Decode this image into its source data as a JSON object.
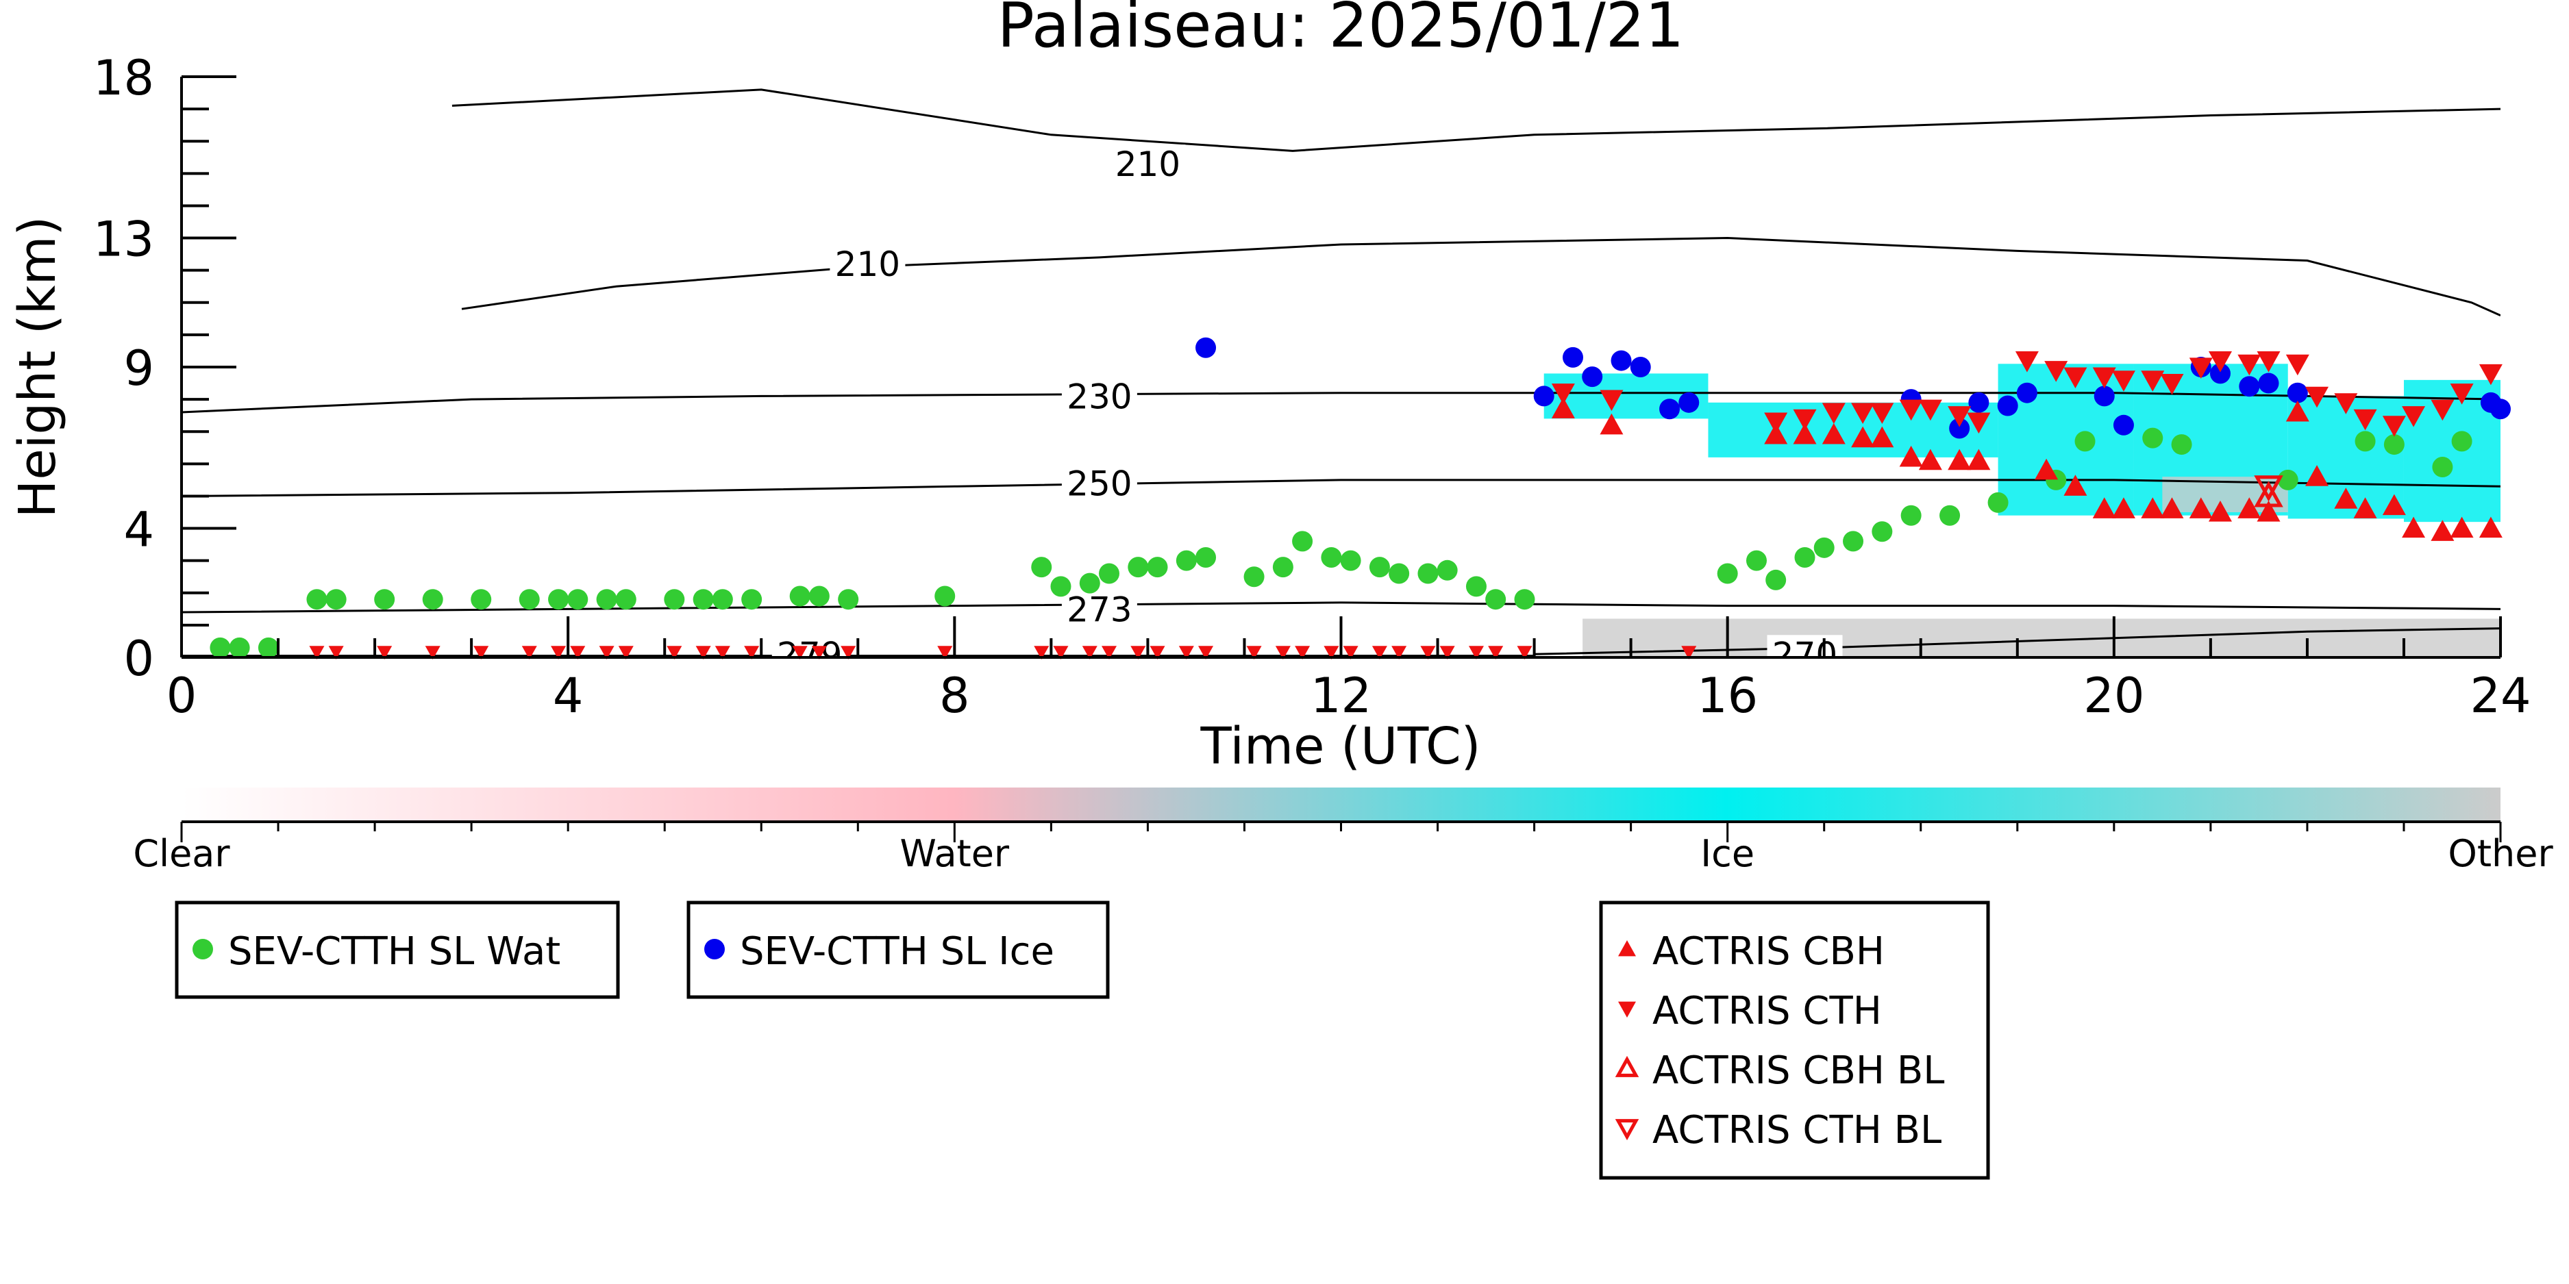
{
  "colors": {
    "water_marker": "#33cc33",
    "ice_marker": "#0000ee",
    "actris_marker": "#ee1111",
    "ice_cloud": "#00f0f0",
    "other_cloud": "#cccccc",
    "water_cloud": "#ffb6c1",
    "contour": "#000000"
  },
  "chart_data": {
    "type": "scatter",
    "title": "Palaiseau: 2025/01/21",
    "xlabel": "Time (UTC)",
    "ylabel": "Height (km)",
    "xlim": [
      0,
      24
    ],
    "ylim": [
      0,
      18
    ],
    "xticks": [
      0,
      4,
      8,
      12,
      16,
      20,
      24
    ],
    "yticks": [
      0,
      4,
      9,
      13,
      18
    ],
    "colorbar": {
      "labels": [
        "Clear",
        "Water",
        "Ice",
        "Other"
      ],
      "positions": [
        0,
        8,
        16,
        24
      ]
    },
    "contours": [
      {
        "label": "210",
        "label_x": 10.0,
        "label_y": 15.3,
        "points": [
          [
            2.8,
            17.1
          ],
          [
            6,
            17.6
          ],
          [
            9,
            16.2
          ],
          [
            11.5,
            15.7
          ],
          [
            14,
            16.2
          ],
          [
            17,
            16.4
          ],
          [
            21,
            16.8
          ],
          [
            24,
            17.0
          ]
        ]
      },
      {
        "label": "210",
        "label_x": 7.1,
        "label_y": 12.2,
        "points": [
          [
            2.9,
            10.8
          ],
          [
            4.5,
            11.5
          ],
          [
            7,
            12.1
          ],
          [
            9.5,
            12.4
          ],
          [
            12,
            12.8
          ],
          [
            16,
            13.0
          ],
          [
            19,
            12.6
          ],
          [
            22,
            12.3
          ],
          [
            23.7,
            11.0
          ],
          [
            24,
            10.6
          ]
        ]
      },
      {
        "label": "230",
        "label_x": 9.5,
        "label_y": 8.1,
        "points": [
          [
            0,
            7.6
          ],
          [
            3,
            8.0
          ],
          [
            6,
            8.1
          ],
          [
            12,
            8.2
          ],
          [
            16,
            8.2
          ],
          [
            20,
            8.2
          ],
          [
            24,
            8.0
          ]
        ]
      },
      {
        "label": "250",
        "label_x": 9.5,
        "label_y": 5.4,
        "points": [
          [
            0,
            5.0
          ],
          [
            4,
            5.1
          ],
          [
            8,
            5.3
          ],
          [
            12,
            5.5
          ],
          [
            16,
            5.5
          ],
          [
            20,
            5.5
          ],
          [
            24,
            5.3
          ]
        ]
      },
      {
        "label": "273",
        "label_x": 9.5,
        "label_y": 1.5,
        "points": [
          [
            0,
            1.4
          ],
          [
            4,
            1.5
          ],
          [
            8,
            1.6
          ],
          [
            12,
            1.7
          ],
          [
            16,
            1.6
          ],
          [
            20,
            1.6
          ],
          [
            24,
            1.5
          ]
        ]
      },
      {
        "label": "270",
        "label_x": 16.8,
        "label_y": 0.1,
        "points": [
          [
            14,
            0.1
          ],
          [
            17,
            0.3
          ],
          [
            20,
            0.6
          ],
          [
            22,
            0.8
          ],
          [
            24,
            0.9
          ]
        ]
      },
      {
        "label": "279",
        "label_x": 6.5,
        "label_y": 0.1,
        "points": [
          [
            0,
            0.05
          ],
          [
            14,
            0.05
          ]
        ]
      }
    ],
    "cloud_regions": [
      {
        "type": "ice",
        "x0": 14.1,
        "x1": 15.8,
        "y0": 7.4,
        "y1": 8.8
      },
      {
        "type": "ice",
        "x0": 15.8,
        "x1": 18.8,
        "y0": 6.2,
        "y1": 7.9
      },
      {
        "type": "ice",
        "x0": 18.8,
        "x1": 20.2,
        "y0": 4.4,
        "y1": 9.1
      },
      {
        "type": "ice",
        "x0": 20.2,
        "x1": 21.8,
        "y0": 4.4,
        "y1": 9.1
      },
      {
        "type": "ice",
        "x0": 21.8,
        "x1": 23.0,
        "y0": 4.3,
        "y1": 8.1
      },
      {
        "type": "ice",
        "x0": 23.0,
        "x1": 24.0,
        "y0": 4.2,
        "y1": 8.6
      },
      {
        "type": "other",
        "x0": 14.5,
        "x1": 24.0,
        "y0": 0.0,
        "y1": 1.2
      },
      {
        "type": "other",
        "x0": 20.5,
        "x1": 21.8,
        "y0": 4.5,
        "y1": 5.6
      }
    ],
    "series": [
      {
        "name": "SEV-CTTH SL Wat",
        "marker": "circle",
        "x": [
          0.4,
          0.6,
          0.9,
          1.4,
          1.6,
          2.1,
          2.6,
          3.1,
          3.6,
          3.9,
          4.1,
          4.4,
          4.6,
          5.1,
          5.4,
          5.6,
          5.9,
          6.4,
          6.6,
          6.9,
          7.9,
          8.9,
          9.1,
          9.4,
          9.6,
          9.9,
          10.1,
          10.4,
          10.6,
          11.1,
          11.4,
          11.6,
          11.9,
          12.1,
          12.4,
          12.6,
          12.9,
          13.1,
          13.4,
          13.6,
          13.9,
          16.0,
          16.3,
          16.5,
          16.8,
          17.0,
          17.3,
          17.6,
          17.9,
          18.3,
          18.8,
          19.4,
          19.7,
          20.4,
          20.7,
          21.8,
          22.6,
          22.9,
          23.4,
          23.6
        ],
        "y": [
          0.3,
          0.3,
          0.3,
          1.8,
          1.8,
          1.8,
          1.8,
          1.8,
          1.8,
          1.8,
          1.8,
          1.8,
          1.8,
          1.8,
          1.8,
          1.8,
          1.8,
          1.9,
          1.9,
          1.8,
          1.9,
          2.8,
          2.2,
          2.3,
          2.6,
          2.8,
          2.8,
          3.0,
          3.1,
          2.5,
          2.8,
          3.6,
          3.1,
          3.0,
          2.8,
          2.6,
          2.6,
          2.7,
          2.2,
          1.8,
          1.8,
          2.6,
          3.0,
          2.4,
          3.1,
          3.4,
          3.6,
          3.9,
          4.4,
          4.4,
          4.8,
          5.5,
          6.7,
          6.8,
          6.6,
          5.5,
          6.7,
          6.6,
          5.9,
          6.7
        ]
      },
      {
        "name": "SEV-CTTH SL Ice",
        "marker": "circle",
        "x": [
          10.6,
          14.1,
          14.4,
          14.6,
          14.9,
          15.1,
          15.4,
          15.6,
          17.9,
          18.4,
          18.6,
          18.9,
          19.1,
          19.9,
          20.1,
          20.9,
          21.1,
          21.4,
          21.6,
          21.9,
          23.9,
          24.0
        ],
        "y": [
          9.6,
          8.1,
          9.3,
          8.7,
          9.2,
          9.0,
          7.7,
          7.9,
          8.0,
          7.1,
          7.9,
          7.8,
          8.2,
          8.1,
          7.2,
          9.0,
          8.8,
          8.4,
          8.5,
          8.2,
          7.9,
          7.7
        ]
      },
      {
        "name": "ACTRIS CBH",
        "marker": "triangle-up",
        "x": [
          14.3,
          14.8,
          16.5,
          16.8,
          17.1,
          17.4,
          17.6,
          17.9,
          18.1,
          18.4,
          18.6,
          19.3,
          19.6,
          19.9,
          20.1,
          20.4,
          20.6,
          20.9,
          21.1,
          21.4,
          21.6,
          21.9,
          22.1,
          22.4,
          22.6,
          22.9,
          23.1,
          23.4,
          23.6,
          23.9
        ],
        "y": [
          7.7,
          7.2,
          6.9,
          6.9,
          6.9,
          6.8,
          6.8,
          6.2,
          6.1,
          6.1,
          6.1,
          5.8,
          5.3,
          4.6,
          4.6,
          4.6,
          4.6,
          4.6,
          4.5,
          4.6,
          4.5,
          7.6,
          5.6,
          4.9,
          4.6,
          4.7,
          4.0,
          3.9,
          4.0,
          4.0
        ]
      },
      {
        "name": "ACTRIS CTH",
        "marker": "triangle-down",
        "x": [
          14.3,
          14.8,
          16.5,
          16.8,
          17.1,
          17.4,
          17.6,
          17.9,
          18.1,
          18.4,
          18.6,
          19.1,
          19.4,
          19.6,
          19.9,
          20.1,
          20.4,
          20.6,
          20.9,
          21.1,
          21.4,
          21.6,
          21.9,
          22.1,
          22.4,
          22.6,
          22.9,
          23.1,
          23.4,
          23.6,
          23.9
        ],
        "y": [
          8.2,
          8.0,
          7.3,
          7.4,
          7.6,
          7.6,
          7.6,
          7.7,
          7.7,
          7.5,
          7.3,
          9.2,
          8.9,
          8.7,
          8.7,
          8.6,
          8.6,
          8.5,
          9.0,
          9.2,
          9.1,
          9.2,
          9.1,
          8.1,
          7.9,
          7.4,
          7.2,
          7.5,
          7.7,
          8.2,
          8.8
        ],
        "ground_x": [
          1.4,
          1.6,
          2.1,
          2.6,
          3.1,
          3.6,
          3.9,
          4.1,
          4.4,
          4.6,
          5.1,
          5.4,
          5.6,
          5.9,
          6.4,
          6.6,
          6.9,
          7.9,
          8.9,
          9.1,
          9.4,
          9.6,
          9.9,
          10.1,
          10.4,
          10.6,
          11.1,
          11.4,
          11.6,
          11.9,
          12.1,
          12.4,
          12.6,
          12.9,
          13.1,
          13.4,
          13.6,
          13.9,
          15.6
        ]
      },
      {
        "name": "ACTRIS CBH BL",
        "marker": "triangle-up-open",
        "x": [
          21.6
        ],
        "y": [
          5.0
        ]
      },
      {
        "name": "ACTRIS CTH BL",
        "marker": "triangle-down-open",
        "x": [
          21.6
        ],
        "y": [
          5.3
        ]
      }
    ]
  }
}
